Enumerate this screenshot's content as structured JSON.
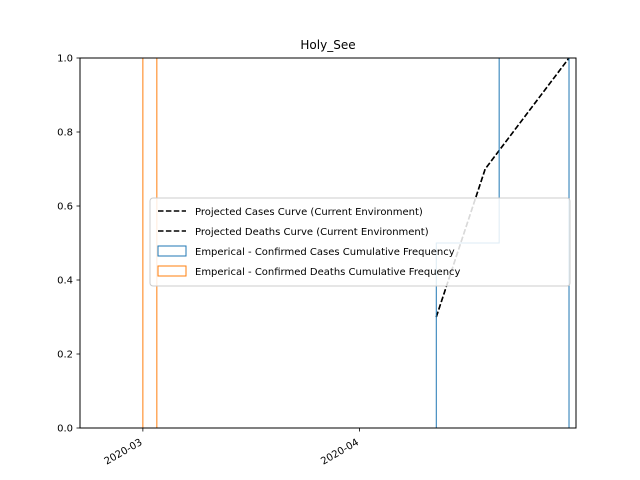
{
  "chart_data": {
    "type": "area",
    "title": "Holy_See",
    "xlabel": "",
    "ylabel": "",
    "x_ticks": [
      "2020-03",
      "2020-04"
    ],
    "y_ticks": [
      "0.0",
      "0.2",
      "0.4",
      "0.6",
      "0.8",
      "1.0"
    ],
    "ylim": [
      0,
      1.0
    ],
    "xlim": [
      "2020-02-21",
      "2020-05-02"
    ],
    "grid": false,
    "legend_position": "center-right",
    "series": [
      {
        "name": "Projected Cases Curve (Current Environment)",
        "kind": "line",
        "style": "dashed",
        "color": "#000000",
        "points": [
          {
            "x": "2020-04-12",
            "y": 0.3
          },
          {
            "x": "2020-04-19",
            "y": 0.7
          },
          {
            "x": "2020-05-01",
            "y": 1.0
          }
        ]
      },
      {
        "name": "Projected Deaths Curve (Current Environment)",
        "kind": "line",
        "style": "dashed",
        "color": "#000000",
        "points": [
          {
            "x": "2020-04-12",
            "y": 0.3
          },
          {
            "x": "2020-04-19",
            "y": 0.7
          },
          {
            "x": "2020-05-01",
            "y": 1.0
          }
        ]
      },
      {
        "name": "Emperical - Confirmed Cases Cumulative Frequency",
        "kind": "step",
        "color": "#1f77b4",
        "points": [
          {
            "x": "2020-04-12",
            "y": 0.5
          },
          {
            "x": "2020-04-21",
            "y": 1.0
          },
          {
            "x": "2020-05-01",
            "y": 0
          }
        ]
      },
      {
        "name": "Emperical - Confirmed Deaths Cumulative Frequency",
        "kind": "step",
        "color": "#ff7f0e",
        "points": [
          {
            "x": "2020-02-23",
            "y": 0
          },
          {
            "x": "2020-03-01",
            "y": 1.0
          },
          {
            "x": "2020-03-03",
            "y": 0
          }
        ]
      }
    ]
  }
}
